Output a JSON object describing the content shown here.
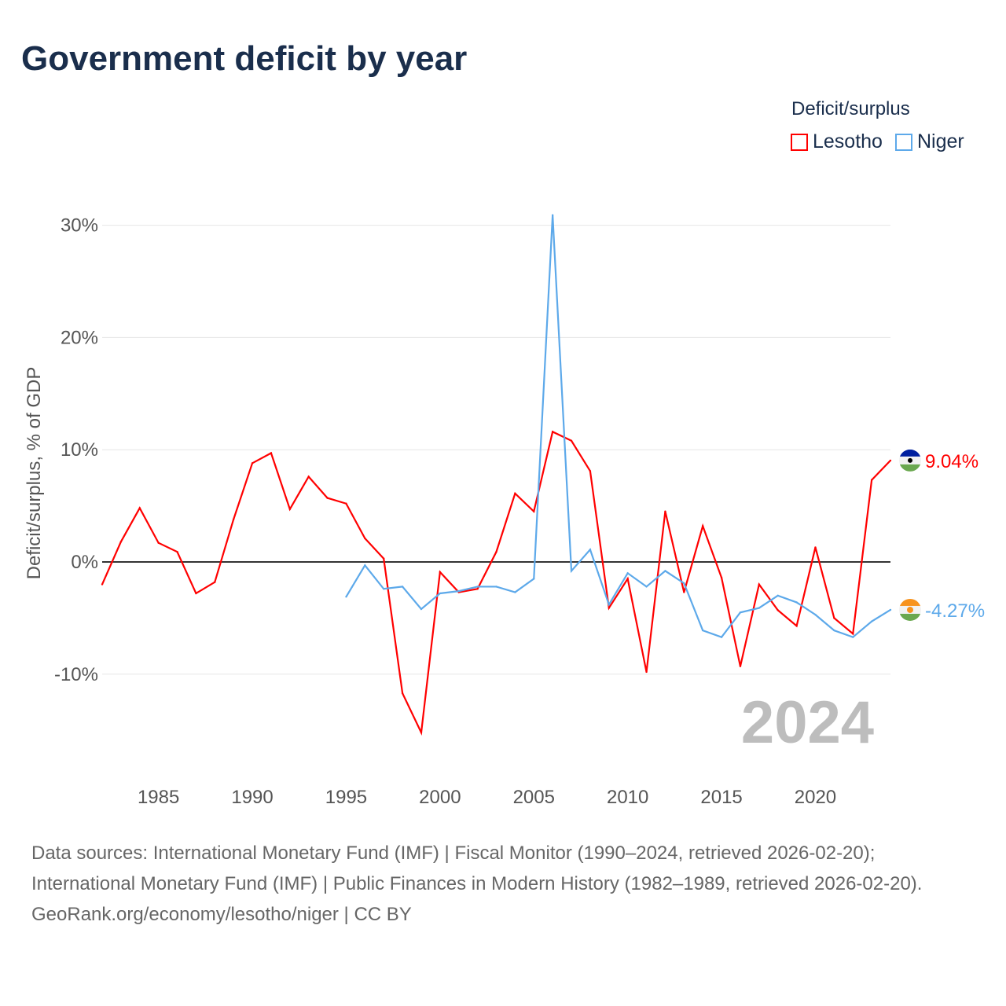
{
  "title": "Government deficit by year",
  "legend_title": "Deficit/surplus",
  "year_watermark": "2024",
  "footer": {
    "sources": "Data sources: International Monetary Fund (IMF) | Fiscal Monitor (1990–2024, retrieved 2026-02-20); International Monetary Fund (IMF) | Public Finances in Modern History (1982–1989, retrieved 2026-02-20).",
    "credit": "GeoRank.org/economy/lesotho/niger | CC BY"
  },
  "chart_data": {
    "type": "line",
    "title": "Government deficit by year",
    "xlabel": "",
    "ylabel": "Deficit/surplus, % of GDP",
    "xlim": [
      1982,
      2024
    ],
    "ylim": [
      -18,
      32
    ],
    "x_ticks": [
      1985,
      1990,
      1995,
      2000,
      2005,
      2010,
      2015,
      2020
    ],
    "y_ticks": [
      -10,
      0,
      10,
      20,
      30
    ],
    "y_tick_labels": [
      "-10%",
      "0%",
      "10%",
      "20%",
      "30%"
    ],
    "grid": true,
    "legend_position": "top-right",
    "series": [
      {
        "name": "Lesotho",
        "color": "#ff0000",
        "end_label": "9.04%",
        "flag": "lesotho-flag",
        "x_start": 1982,
        "values": [
          -2.0,
          1.8,
          4.8,
          1.7,
          0.9,
          -2.8,
          -1.8,
          3.8,
          8.8,
          9.7,
          4.7,
          7.6,
          5.7,
          5.2,
          2.1,
          0.3,
          -11.7,
          -15.2,
          -0.9,
          -2.7,
          -2.4,
          0.9,
          6.1,
          4.5,
          11.6,
          10.8,
          8.1,
          -4.1,
          -1.5,
          -9.8,
          4.5,
          -2.7,
          3.2,
          -1.4,
          -9.3,
          -2.0,
          -4.3,
          -5.7,
          1.3,
          -5.0,
          -6.4,
          7.3,
          9.04
        ]
      },
      {
        "name": "Niger",
        "color": "#5da9ea",
        "end_label": "-4.27%",
        "flag": "niger-flag",
        "x_start": 1995,
        "values": [
          -3.1,
          -0.3,
          -2.4,
          -2.2,
          -4.2,
          -2.8,
          -2.6,
          -2.2,
          -2.2,
          -2.7,
          -1.5,
          30.9,
          -0.8,
          1.1,
          -3.8,
          -1.0,
          -2.2,
          -0.8,
          -1.9,
          -6.1,
          -6.7,
          -4.5,
          -4.1,
          -3.0,
          -3.6,
          -4.7,
          -6.1,
          -6.7,
          -5.3,
          -4.27
        ]
      }
    ]
  }
}
